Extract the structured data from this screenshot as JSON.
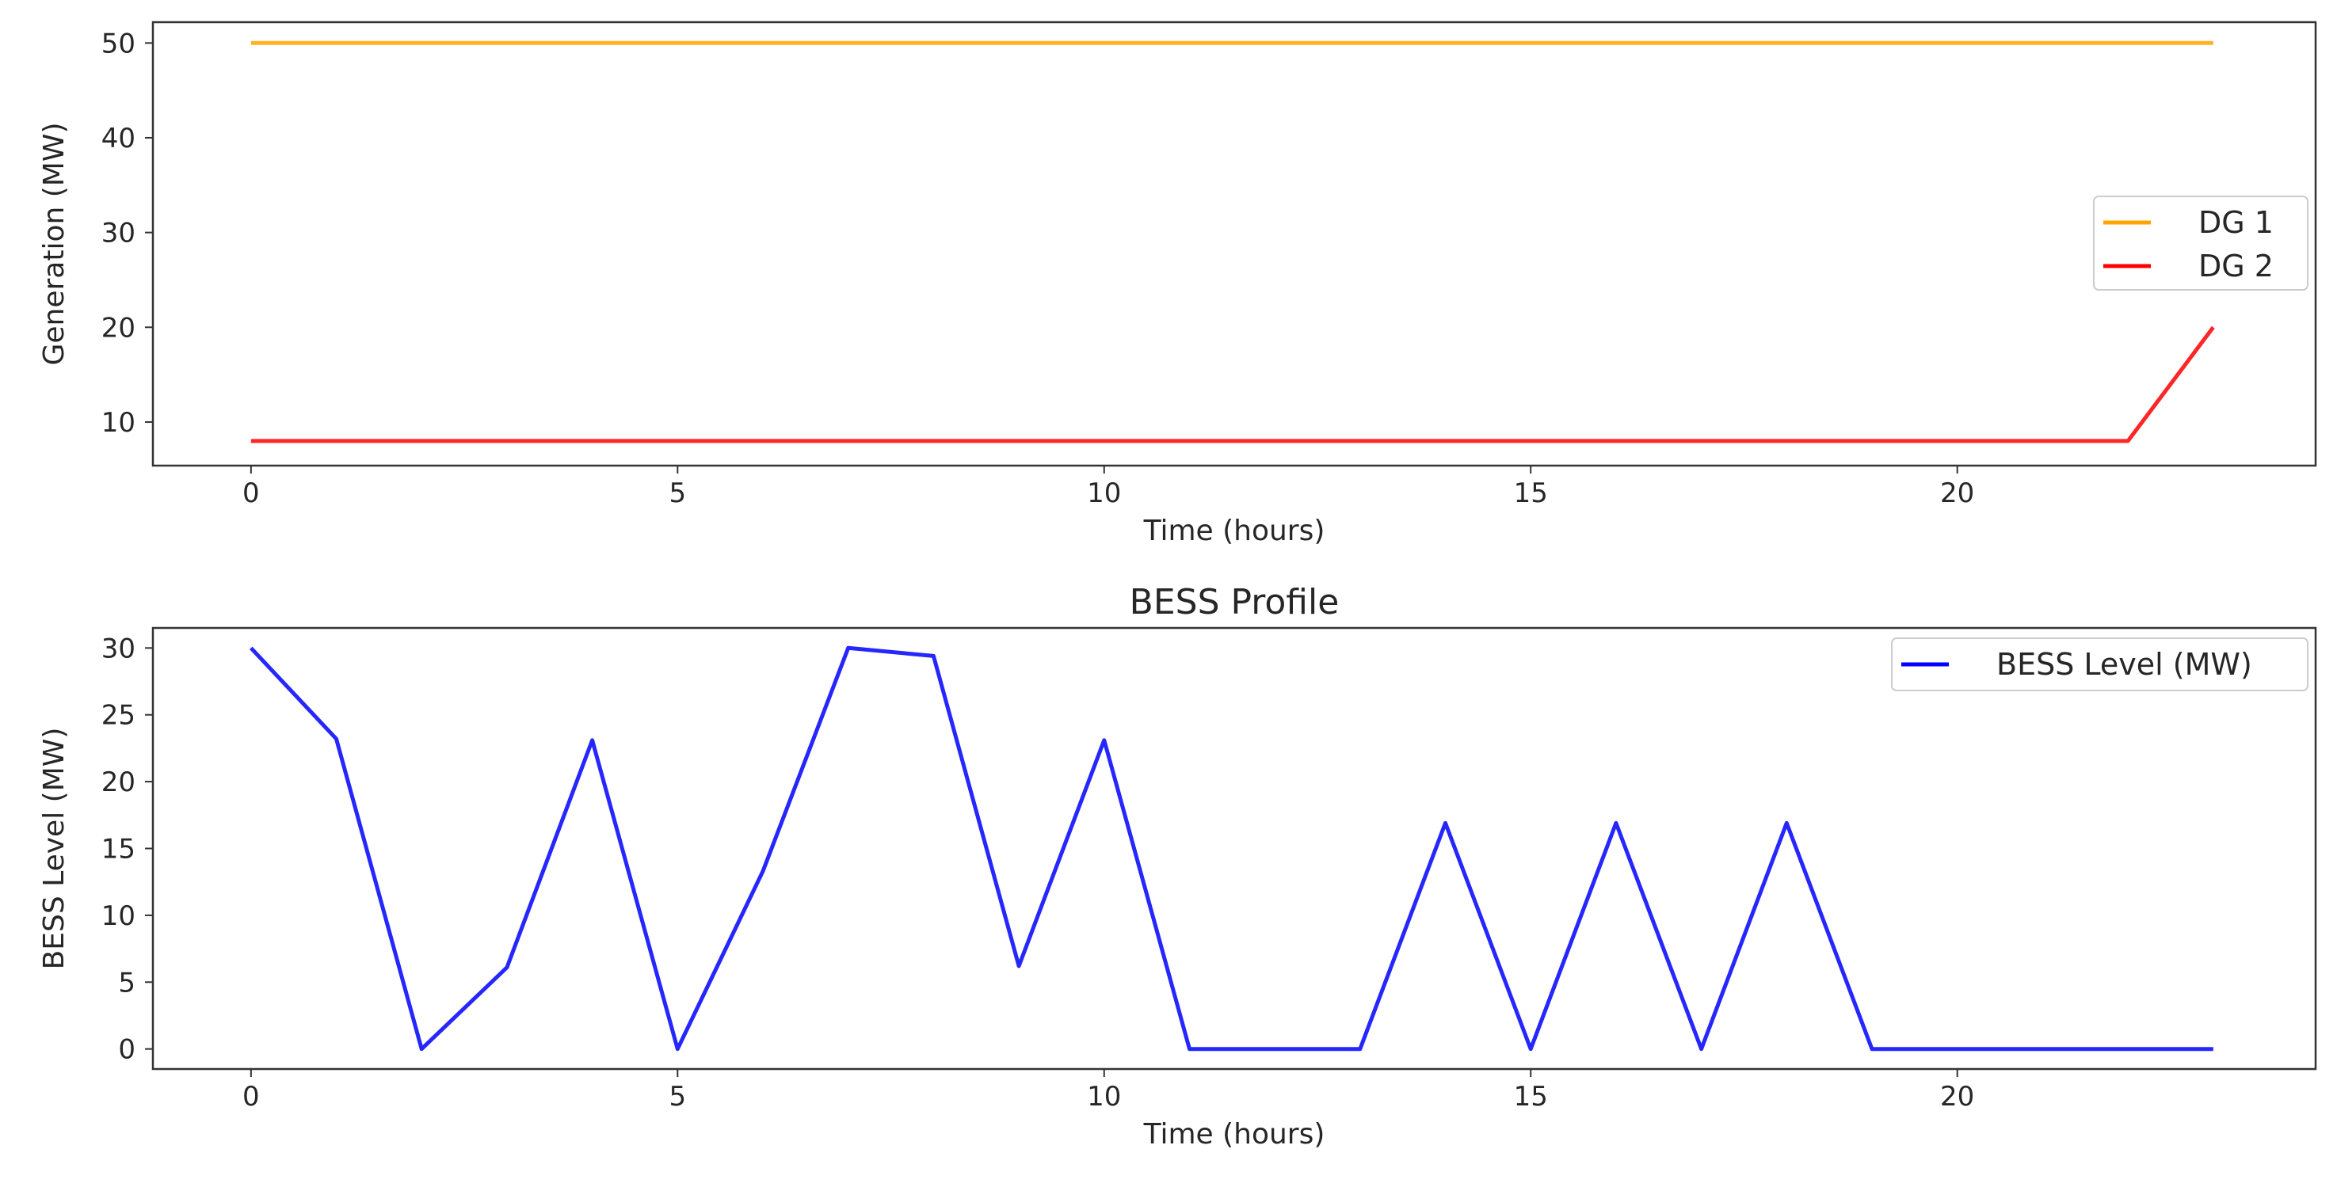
{
  "chart_data": [
    {
      "type": "line",
      "title": "",
      "xlabel": "Time (hours)",
      "ylabel": "Generation (MW)",
      "xlim": [
        -1.15,
        24.2
      ],
      "ylim": [
        5.4,
        52.2
      ],
      "xticks": [
        0,
        5,
        10,
        15,
        20
      ],
      "yticks": [
        10,
        20,
        30,
        40,
        50
      ],
      "grid": false,
      "legend": "center-right",
      "x": [
        0,
        1,
        2,
        3,
        4,
        5,
        6,
        7,
        8,
        9,
        10,
        11,
        12,
        13,
        14,
        15,
        16,
        17,
        18,
        19,
        20,
        21,
        22,
        23
      ],
      "series": [
        {
          "name": "DG 1",
          "color": "#ffa500",
          "values": [
            50,
            50,
            50,
            50,
            50,
            50,
            50,
            50,
            50,
            50,
            50,
            50,
            50,
            50,
            50,
            50,
            50,
            50,
            50,
            50,
            50,
            50,
            50,
            50
          ]
        },
        {
          "name": "DG 2",
          "color": "#ff0000",
          "values": [
            8,
            8,
            8,
            8,
            8,
            8,
            8,
            8,
            8,
            8,
            8,
            8,
            8,
            8,
            8,
            8,
            8,
            8,
            8,
            8,
            8,
            8,
            8,
            20
          ]
        }
      ]
    },
    {
      "type": "line",
      "title": "BESS Profile",
      "xlabel": "Time (hours)",
      "ylabel": "BESS Level (MW)",
      "xlim": [
        -1.15,
        24.2
      ],
      "ylim": [
        -1.5,
        31.5
      ],
      "xticks": [
        0,
        5,
        10,
        15,
        20
      ],
      "yticks": [
        0,
        5,
        10,
        15,
        20,
        25,
        30
      ],
      "grid": false,
      "legend": "top-right",
      "x": [
        0,
        1,
        2,
        3,
        4,
        5,
        6,
        7,
        8,
        9,
        10,
        11,
        12,
        13,
        14,
        15,
        16,
        17,
        18,
        19,
        20,
        21,
        22,
        23
      ],
      "series": [
        {
          "name": "BESS Level (MW)",
          "color": "#0000ff",
          "values": [
            30,
            23.2,
            0,
            6.1,
            23.1,
            0,
            13.3,
            30,
            29.4,
            6.2,
            23.1,
            0,
            0,
            0,
            16.9,
            0,
            16.9,
            0,
            16.9,
            0,
            0,
            0,
            0,
            0
          ]
        }
      ]
    }
  ]
}
